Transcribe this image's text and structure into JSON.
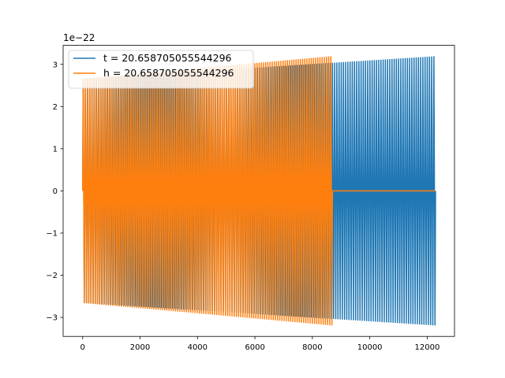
{
  "chart_data": {
    "type": "line",
    "title": "",
    "xlabel": "",
    "ylabel": "",
    "y_offset_label": "1e−22",
    "y_scale": 1e-22,
    "xlim": [
      -680,
      12950
    ],
    "ylim": [
      -3.45,
      3.45
    ],
    "xticks": [
      0,
      2000,
      4000,
      6000,
      8000,
      10000,
      12000
    ],
    "xtick_labels": [
      "0",
      "2000",
      "4000",
      "6000",
      "8000",
      "10000",
      "12000"
    ],
    "yticks": [
      -3,
      -2,
      -1,
      0,
      1,
      2,
      3
    ],
    "ytick_labels": [
      "−3",
      "−2",
      "−1",
      "0",
      "1",
      "2",
      "3"
    ],
    "grid": false,
    "legend_position": "top-left",
    "series": [
      {
        "name": "t = 20.658705055544296",
        "color": "#1f77b4",
        "x_start": 0,
        "x_end": 12290,
        "amplitude_start": 2.65,
        "amplitude_end": 3.18,
        "cycles": 160
      },
      {
        "name": "h = 20.658705055544296",
        "color": "#ff7f0e",
        "x_start": 0,
        "x_end": 8700,
        "amplitude_start": 2.65,
        "amplitude_end": 3.18,
        "cycles": 115,
        "flat_until": 12290
      }
    ]
  }
}
